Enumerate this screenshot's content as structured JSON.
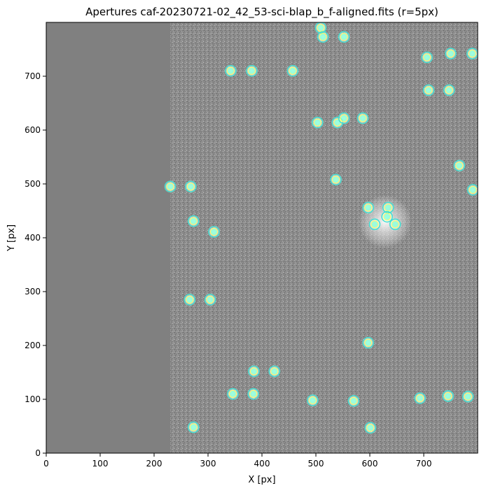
{
  "chart_data": {
    "type": "scatter",
    "title": "Apertures caf-20230721-02_42_53-sci-blap_b_f-aligned.fits (r=5px)",
    "xlabel": "X [px]",
    "ylabel": "Y [px]",
    "xlim": [
      0,
      800
    ],
    "ylim": [
      0,
      800
    ],
    "xticks": [
      0,
      100,
      200,
      300,
      400,
      500,
      600,
      700
    ],
    "yticks": [
      0,
      100,
      200,
      300,
      400,
      500,
      600,
      700
    ],
    "grid": false,
    "legend": "none",
    "image": {
      "description": "grayscale astronomical frame",
      "valid_region_x": [
        230,
        800
      ],
      "masked_color": "#808080",
      "background_color": "#8a8a8a"
    },
    "aperture_color": "#7fffd4",
    "aperture_edge_color": "#40e0d0",
    "apertures": [
      {
        "x": 509,
        "y": 790
      },
      {
        "x": 513,
        "y": 773
      },
      {
        "x": 552,
        "y": 773
      },
      {
        "x": 342,
        "y": 710
      },
      {
        "x": 381,
        "y": 710
      },
      {
        "x": 457,
        "y": 710
      },
      {
        "x": 706,
        "y": 735
      },
      {
        "x": 750,
        "y": 742
      },
      {
        "x": 790,
        "y": 742
      },
      {
        "x": 709,
        "y": 674
      },
      {
        "x": 747,
        "y": 674
      },
      {
        "x": 503,
        "y": 614
      },
      {
        "x": 540,
        "y": 614
      },
      {
        "x": 552,
        "y": 622
      },
      {
        "x": 587,
        "y": 622
      },
      {
        "x": 766,
        "y": 534
      },
      {
        "x": 537,
        "y": 508
      },
      {
        "x": 230,
        "y": 495
      },
      {
        "x": 268,
        "y": 495
      },
      {
        "x": 791,
        "y": 489
      },
      {
        "x": 597,
        "y": 456
      },
      {
        "x": 634,
        "y": 456
      },
      {
        "x": 632,
        "y": 439
      },
      {
        "x": 609,
        "y": 425
      },
      {
        "x": 647,
        "y": 425
      },
      {
        "x": 273,
        "y": 431
      },
      {
        "x": 311,
        "y": 411
      },
      {
        "x": 266,
        "y": 285
      },
      {
        "x": 304,
        "y": 285
      },
      {
        "x": 597,
        "y": 205
      },
      {
        "x": 385,
        "y": 152
      },
      {
        "x": 423,
        "y": 152
      },
      {
        "x": 346,
        "y": 110
      },
      {
        "x": 384,
        "y": 110
      },
      {
        "x": 494,
        "y": 98
      },
      {
        "x": 570,
        "y": 97
      },
      {
        "x": 693,
        "y": 102
      },
      {
        "x": 745,
        "y": 106
      },
      {
        "x": 782,
        "y": 105
      },
      {
        "x": 273,
        "y": 48
      },
      {
        "x": 601,
        "y": 47
      }
    ]
  }
}
